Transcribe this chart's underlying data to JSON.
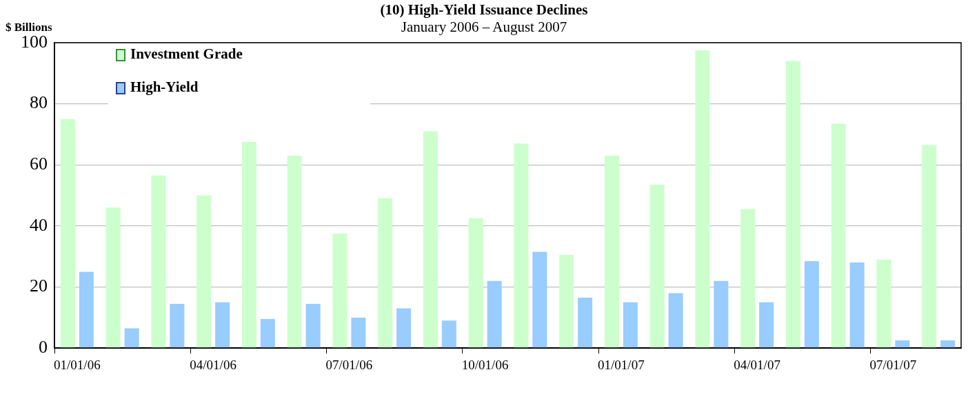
{
  "chart_data": {
    "type": "bar",
    "title": "(10) High-Yield Issuance Declines",
    "subtitle": "January 2006 – August 2007",
    "ylabel": "$ Billions",
    "categories": [
      "01/01/06",
      null,
      null,
      "04/01/06",
      null,
      null,
      "07/01/06",
      null,
      null,
      "10/01/06",
      null,
      null,
      "01/01/07",
      null,
      null,
      "04/01/07",
      null,
      null,
      "07/01/07",
      null
    ],
    "series": [
      {
        "name": "Investment Grade",
        "color": "#ccffcc",
        "values": [
          75,
          46,
          56.5,
          50,
          67.5,
          63,
          37.5,
          49,
          71,
          42.5,
          67,
          30.5,
          63,
          53.5,
          97.5,
          45.5,
          94,
          73.5,
          29,
          66.5
        ]
      },
      {
        "name": "High-Yield",
        "color": "#99ccff",
        "values": [
          25,
          6.5,
          14.5,
          15,
          9.5,
          14.5,
          10,
          13,
          9,
          22,
          31.5,
          16.5,
          15,
          18,
          22,
          15,
          28.5,
          28,
          2.5,
          2.5
        ]
      }
    ],
    "ylim": [
      0,
      100
    ],
    "yticks": [
      0,
      20,
      40,
      60,
      80,
      100
    ],
    "grid": "y",
    "legend": "top left"
  }
}
